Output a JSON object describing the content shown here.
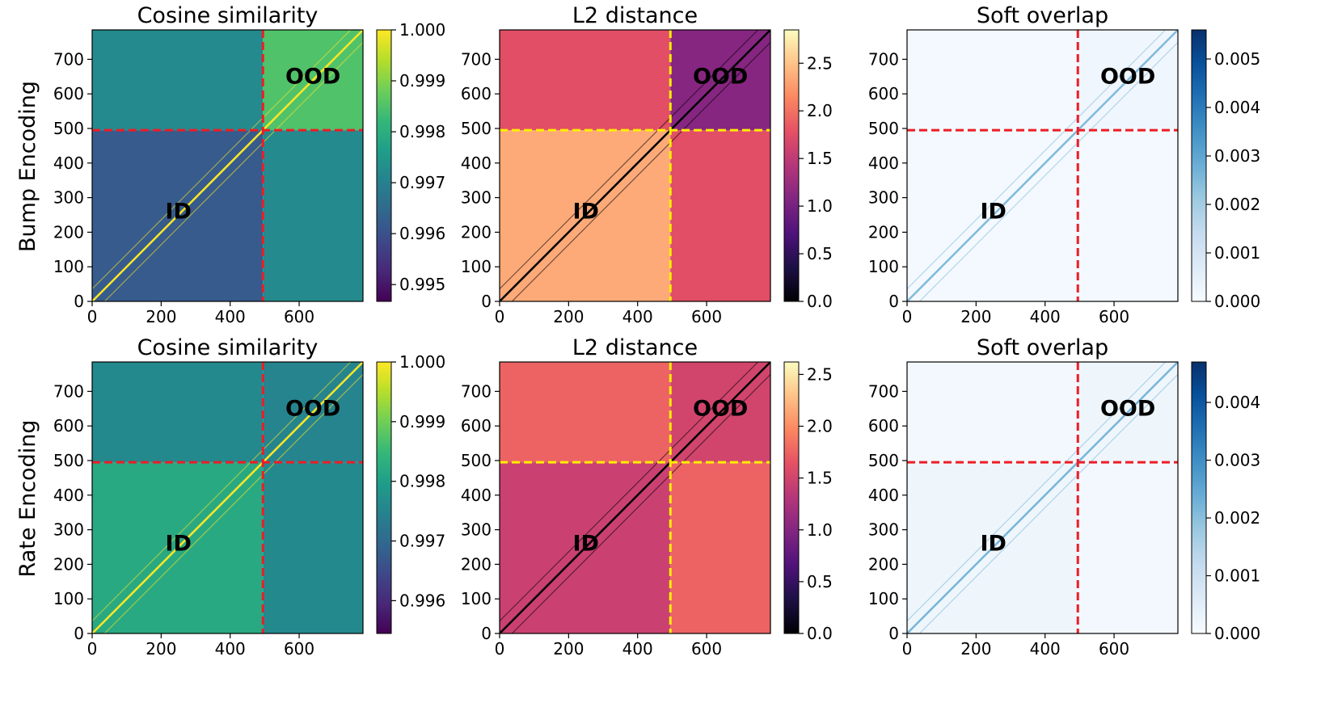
{
  "figure": {
    "row_labels": [
      "Bump Encoding",
      "Rate Encoding"
    ],
    "region_labels": {
      "id": "ID",
      "ood": "OOD"
    },
    "boundary_index": 495,
    "axis_max": 785
  },
  "colors": {
    "boundary_red": "#ee1c25",
    "boundary_yellow": "#ffee00",
    "viridis": [
      "#440154",
      "#482878",
      "#3e4989",
      "#31688e",
      "#26828e",
      "#1f9e89",
      "#35b779",
      "#6ece58",
      "#b5de2b",
      "#fde725"
    ],
    "magma": [
      "#000004",
      "#1c1044",
      "#4f127b",
      "#812581",
      "#b5367a",
      "#e55064",
      "#fb8761",
      "#fec287",
      "#fcfdbf"
    ],
    "blues": [
      "#f7fbff",
      "#deebf7",
      "#c6dbef",
      "#9ecae1",
      "#6baed6",
      "#4292c6",
      "#2171b5",
      "#08519c",
      "#08306b"
    ]
  },
  "chart_data": [
    {
      "type": "heatmap",
      "id": "bump-cos",
      "title": "Cosine similarity",
      "row": 0,
      "cmap": "viridis",
      "x_ticks": [
        "0",
        "200",
        "400",
        "600"
      ],
      "y_ticks": [
        "0",
        "100",
        "200",
        "300",
        "400",
        "500",
        "600",
        "700"
      ],
      "xlim": [
        0,
        785
      ],
      "ylim": [
        0,
        785
      ],
      "colorbar_range": [
        0.99467,
        1.0
      ],
      "colorbar_ticks": [
        "0.995",
        "0.996",
        "0.997",
        "0.998",
        "0.999",
        "1.000"
      ],
      "boundary": 495,
      "boundary_color": "red",
      "levels": {
        "id_block": 0.9962,
        "ood_block": 0.9985,
        "cross_block": 0.9972,
        "diagonal": 1.0
      }
    },
    {
      "type": "heatmap",
      "id": "bump-l2",
      "title": "L2 distance",
      "row": 0,
      "cmap": "magma",
      "x_ticks": [
        "0",
        "200",
        "400",
        "600"
      ],
      "y_ticks": [
        "0",
        "100",
        "200",
        "300",
        "400",
        "500",
        "600",
        "700"
      ],
      "xlim": [
        0,
        785
      ],
      "ylim": [
        0,
        785
      ],
      "colorbar_range": [
        0.0,
        2.85
      ],
      "colorbar_ticks": [
        "0.0",
        "0.5",
        "1.0",
        "1.5",
        "2.0",
        "2.5"
      ],
      "boundary": 495,
      "boundary_color": "yellow",
      "levels": {
        "id_block": 2.35,
        "ood_block": 1.1,
        "cross_block": 1.75,
        "diagonal": 0.0
      }
    },
    {
      "type": "heatmap",
      "id": "bump-soft",
      "title": "Soft overlap",
      "row": 0,
      "cmap": "blues",
      "x_ticks": [
        "0",
        "200",
        "400",
        "600"
      ],
      "y_ticks": [
        "0",
        "100",
        "200",
        "300",
        "400",
        "500",
        "600",
        "700"
      ],
      "xlim": [
        0,
        785
      ],
      "ylim": [
        0,
        785
      ],
      "colorbar_range": [
        0.0,
        0.0056
      ],
      "colorbar_ticks": [
        "0.000",
        "0.001",
        "0.002",
        "0.003",
        "0.004",
        "0.005"
      ],
      "boundary": 495,
      "boundary_color": "red",
      "levels": {
        "id_block": 0.0001,
        "ood_block": 0.0002,
        "cross_block": 0.0001,
        "diagonal": 0.0025
      }
    },
    {
      "type": "heatmap",
      "id": "rate-cos",
      "title": "Cosine similarity",
      "row": 1,
      "cmap": "viridis",
      "x_ticks": [
        "0",
        "200",
        "400",
        "600"
      ],
      "y_ticks": [
        "0",
        "100",
        "200",
        "300",
        "400",
        "500",
        "600",
        "700"
      ],
      "xlim": [
        0,
        785
      ],
      "ylim": [
        0,
        785
      ],
      "colorbar_range": [
        0.99545,
        1.0
      ],
      "colorbar_ticks": [
        "0.996",
        "0.997",
        "0.998",
        "0.999",
        "1.000"
      ],
      "boundary": 495,
      "boundary_color": "red",
      "levels": {
        "id_block": 0.9982,
        "ood_block": 0.9975,
        "cross_block": 0.9976,
        "diagonal": 1.0
      }
    },
    {
      "type": "heatmap",
      "id": "rate-l2",
      "title": "L2 distance",
      "row": 1,
      "cmap": "magma",
      "x_ticks": [
        "0",
        "200",
        "400",
        "600"
      ],
      "y_ticks": [
        "0",
        "100",
        "200",
        "300",
        "400",
        "500",
        "600",
        "700"
      ],
      "xlim": [
        0,
        785
      ],
      "ylim": [
        0,
        785
      ],
      "colorbar_range": [
        0.0,
        2.62
      ],
      "colorbar_ticks": [
        "0.0",
        "0.5",
        "1.0",
        "1.5",
        "2.0",
        "2.5"
      ],
      "boundary": 495,
      "boundary_color": "yellow",
      "levels": {
        "id_block": 1.45,
        "ood_block": 1.5,
        "cross_block": 1.75,
        "diagonal": 0.0
      }
    },
    {
      "type": "heatmap",
      "id": "rate-soft",
      "title": "Soft overlap",
      "row": 1,
      "cmap": "blues",
      "x_ticks": [
        "0",
        "200",
        "400",
        "600"
      ],
      "y_ticks": [
        "0",
        "100",
        "200",
        "300",
        "400",
        "500",
        "600",
        "700"
      ],
      "xlim": [
        0,
        785
      ],
      "ylim": [
        0,
        785
      ],
      "colorbar_range": [
        0.0,
        0.0047
      ],
      "colorbar_ticks": [
        "0.000",
        "0.001",
        "0.002",
        "0.003",
        "0.004"
      ],
      "boundary": 495,
      "boundary_color": "red",
      "levels": {
        "id_block": 0.0002,
        "ood_block": 0.0002,
        "cross_block": 0.0001,
        "diagonal": 0.0022
      }
    }
  ]
}
